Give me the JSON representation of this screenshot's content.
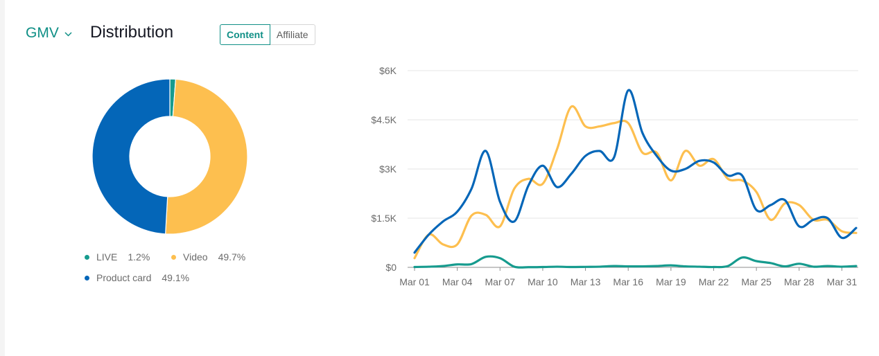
{
  "header": {
    "metric": "GMV",
    "title": "Distribution",
    "tabs": [
      {
        "label": "Content",
        "active": true
      },
      {
        "label": "Affiliate",
        "active": false
      }
    ]
  },
  "colors": {
    "accent": "#0f8f86",
    "live": "#169b8e",
    "video": "#fdbf4f",
    "product_card": "#0466b8"
  },
  "chart_data": [
    {
      "type": "pie",
      "hole": true,
      "slices": [
        {
          "name": "LIVE",
          "value": 1.2,
          "label": "1.2%"
        },
        {
          "name": "Video",
          "value": 49.7,
          "label": "49.7%"
        },
        {
          "name": "Product card",
          "value": 49.1,
          "label": "49.1%"
        }
      ]
    },
    {
      "type": "line",
      "x": [
        "Mar 01",
        "Mar 02",
        "Mar 03",
        "Mar 04",
        "Mar 05",
        "Mar 06",
        "Mar 07",
        "Mar 08",
        "Mar 09",
        "Mar 10",
        "Mar 11",
        "Mar 12",
        "Mar 13",
        "Mar 14",
        "Mar 15",
        "Mar 16",
        "Mar 17",
        "Mar 18",
        "Mar 19",
        "Mar 20",
        "Mar 21",
        "Mar 22",
        "Mar 23",
        "Mar 24",
        "Mar 25",
        "Mar 26",
        "Mar 27",
        "Mar 28",
        "Mar 29",
        "Mar 30",
        "Mar 31",
        "Apr 01"
      ],
      "x_tick_labels": [
        "Mar 01",
        "Mar 04",
        "Mar 07",
        "Mar 10",
        "Mar 13",
        "Mar 16",
        "Mar 19",
        "Mar 22",
        "Mar 25",
        "Mar 28",
        "Mar 31"
      ],
      "y_ticks": [
        0,
        1500,
        3000,
        4500,
        6000
      ],
      "y_tick_labels": [
        "$0",
        "$1.5K",
        "$3K",
        "$4.5K",
        "$6K"
      ],
      "ylim": [
        0,
        6000
      ],
      "grid": true,
      "series": [
        {
          "name": "LIVE",
          "color": "#169b8e",
          "values": [
            10,
            20,
            40,
            90,
            100,
            320,
            280,
            20,
            5,
            10,
            20,
            10,
            15,
            20,
            40,
            30,
            30,
            40,
            60,
            30,
            20,
            10,
            40,
            300,
            190,
            130,
            30,
            110,
            20,
            40,
            20,
            40
          ]
        },
        {
          "name": "Video",
          "color": "#fdbf4f",
          "values": [
            280,
            1000,
            700,
            700,
            1580,
            1600,
            1250,
            2400,
            2700,
            2550,
            3600,
            4900,
            4300,
            4300,
            4400,
            4400,
            3500,
            3500,
            2650,
            3550,
            3100,
            3300,
            2700,
            2650,
            2300,
            1450,
            1950,
            1900,
            1450,
            1450,
            1100,
            1050
          ]
        },
        {
          "name": "Product card",
          "color": "#0466b8",
          "values": [
            450,
            1000,
            1400,
            1700,
            2400,
            3550,
            2000,
            1400,
            2500,
            3100,
            2450,
            2850,
            3400,
            3550,
            3350,
            5400,
            4100,
            3400,
            2950,
            3000,
            3250,
            3200,
            2800,
            2800,
            1750,
            1900,
            2050,
            1250,
            1450,
            1500,
            900,
            1200
          ]
        }
      ]
    }
  ]
}
